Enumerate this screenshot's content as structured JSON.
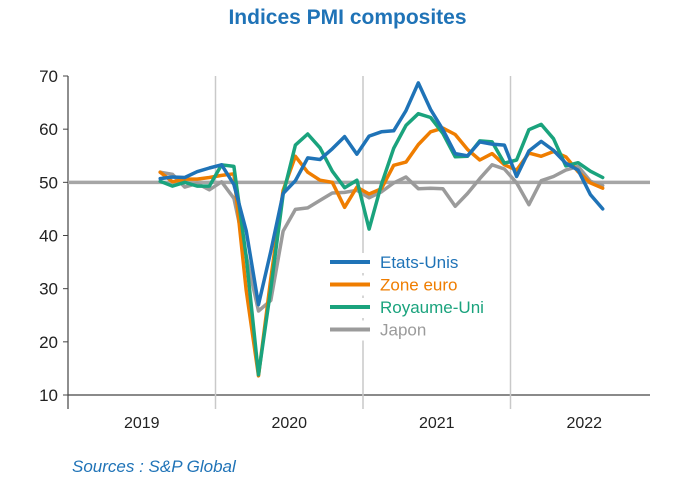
{
  "title": "Indices PMI composites",
  "source": "Sources : S&P Global",
  "chart_data": {
    "type": "line",
    "title": "Indices PMI composites",
    "xlabel": "",
    "ylabel": "",
    "ylim": [
      10,
      70
    ],
    "yticks": [
      10,
      20,
      30,
      40,
      50,
      60,
      70
    ],
    "xtick_labels": [
      "2019",
      "2020",
      "2021",
      "2022"
    ],
    "grid": "vertical year separators only",
    "reference_line": 50,
    "legend_position": "center-right",
    "x": [
      "2019-08",
      "2019-09",
      "2019-10",
      "2019-11",
      "2019-12",
      "2020-01",
      "2020-02",
      "2020-03",
      "2020-04",
      "2020-05",
      "2020-06",
      "2020-07",
      "2020-08",
      "2020-09",
      "2020-10",
      "2020-11",
      "2020-12",
      "2021-01",
      "2021-02",
      "2021-03",
      "2021-04",
      "2021-05",
      "2021-06",
      "2021-07",
      "2021-08",
      "2021-09",
      "2021-10",
      "2021-11",
      "2021-12",
      "2022-01",
      "2022-02",
      "2022-03",
      "2022-04",
      "2022-05",
      "2022-06",
      "2022-07",
      "2022-08"
    ],
    "series": [
      {
        "name": "Etats-Unis",
        "color": "#1f73b7",
        "values": [
          50.7,
          51.0,
          50.9,
          52.0,
          52.7,
          53.3,
          49.6,
          40.9,
          27.0,
          37.0,
          47.9,
          50.3,
          54.6,
          54.3,
          56.3,
          58.6,
          55.3,
          58.7,
          59.5,
          59.7,
          63.5,
          68.7,
          63.7,
          59.9,
          55.4,
          55.0,
          57.6,
          57.2,
          57.0,
          51.1,
          55.9,
          57.7,
          56.0,
          53.6,
          52.3,
          47.7,
          45.0
        ]
      },
      {
        "name": "Zone euro",
        "color": "#ef7d00",
        "values": [
          51.9,
          50.1,
          50.6,
          50.6,
          50.9,
          51.3,
          51.6,
          29.7,
          13.6,
          31.9,
          48.5,
          54.9,
          51.9,
          50.4,
          50.0,
          45.3,
          49.1,
          47.8,
          48.8,
          53.2,
          53.8,
          57.1,
          59.5,
          60.2,
          59.0,
          56.2,
          54.2,
          55.4,
          53.3,
          52.3,
          55.5,
          54.9,
          55.8,
          54.8,
          52.0,
          49.9,
          48.9
        ]
      },
      {
        "name": "Royaume-Uni",
        "color": "#1aa37d",
        "values": [
          50.2,
          49.3,
          50.0,
          49.3,
          49.3,
          53.3,
          53.0,
          36.0,
          13.8,
          30.0,
          47.7,
          57.0,
          59.1,
          56.5,
          52.1,
          49.0,
          50.4,
          41.2,
          49.6,
          56.4,
          60.7,
          62.9,
          62.2,
          59.2,
          54.8,
          54.9,
          57.8,
          57.6,
          53.6,
          54.2,
          59.9,
          60.9,
          58.2,
          53.1,
          53.7,
          52.1,
          50.9
        ]
      },
      {
        "name": "Japon",
        "color": "#9b9b9b",
        "values": [
          51.9,
          51.5,
          49.1,
          49.8,
          48.6,
          50.1,
          47.0,
          36.2,
          25.8,
          27.8,
          40.8,
          44.9,
          45.2,
          46.6,
          48.0,
          48.1,
          48.5,
          47.1,
          48.2,
          49.9,
          51.0,
          48.8,
          48.9,
          48.8,
          45.5,
          47.9,
          50.7,
          53.3,
          52.5,
          49.9,
          45.8,
          50.3,
          51.1,
          52.3,
          53.0,
          50.2,
          49.4
        ]
      }
    ]
  }
}
